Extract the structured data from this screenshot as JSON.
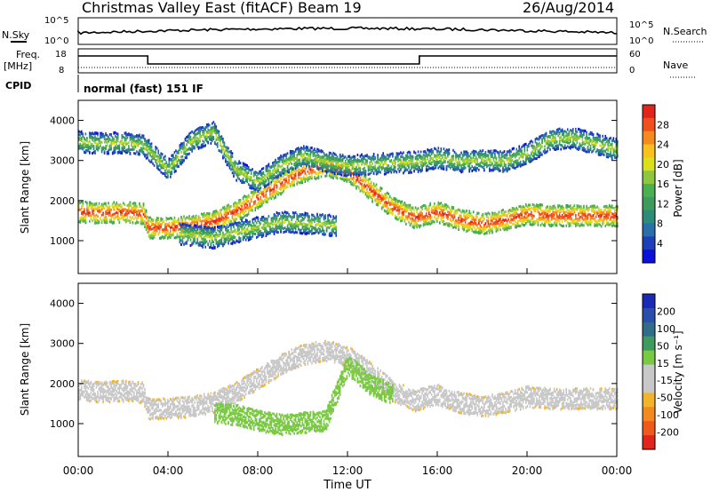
{
  "header": {
    "station": "Christmas Valley East (fitACF)",
    "beam": "Beam 19",
    "date": "26/Aug/2014"
  },
  "panels": {
    "nsky_label": "N.Sky",
    "nsearch_label": "N.Search",
    "freq_label_1": "Freq.",
    "freq_label_2": "[MHz]",
    "nave_label": "Nave",
    "cpid_label": "CPID",
    "cpid_text": "normal (fast) 151 IF",
    "noise_ticks_left": [
      "10^5",
      "10^0"
    ],
    "noise_ticks_right": [
      "10^5",
      "10^0"
    ],
    "freq_ticks_left": [
      "18",
      "8"
    ],
    "freq_ticks_right": [
      "60",
      "0"
    ]
  },
  "colorbars": {
    "power": {
      "label": "Power [dB]",
      "ticks": [
        "28",
        "24",
        "20",
        "16",
        "12",
        "8",
        "4"
      ],
      "colors": [
        "#e0261b",
        "#f05020",
        "#f58a1f",
        "#f7c21d",
        "#d9e01c",
        "#8fc63f",
        "#4caf50",
        "#3f9b5c",
        "#2e8b7a",
        "#2a6fa8",
        "#1d3fb8",
        "#0a10d8"
      ]
    },
    "velocity": {
      "label": "Velocity [m s⁻¹]",
      "ticks": [
        "200",
        "100",
        "50",
        "15",
        "-15",
        "-50",
        "-100",
        "-200"
      ],
      "colors": [
        "#1a2ab5",
        "#2a4fa8",
        "#2f6d8a",
        "#3f9b5c",
        "#79c943",
        "#c8c8c8",
        "#c8c8c8",
        "#f2b52a",
        "#f28a1f",
        "#ef5a1c",
        "#e0261b"
      ]
    }
  },
  "chart_data": [
    {
      "type": "heatmap",
      "title": "Power",
      "xlabel": "",
      "ylabel": "Slant Range [km]",
      "xlim": [
        0,
        24
      ],
      "ylim": [
        180,
        4500
      ],
      "x_ticks": [
        "00:00",
        "04:00",
        "08:00",
        "12:00",
        "16:00",
        "20:00",
        "00:00"
      ],
      "y_ticks": [
        "1000",
        "2000",
        "3000",
        "4000"
      ],
      "bands": [
        {
          "name": "lower",
          "x": [
            0,
            1,
            2,
            2.9,
            3.1,
            4,
            5,
            6,
            7,
            8,
            9,
            10,
            11,
            12,
            13,
            14,
            15,
            16,
            17,
            18,
            19,
            20,
            21,
            22,
            23,
            24
          ],
          "y": [
            1750,
            1720,
            1740,
            1700,
            1350,
            1350,
            1400,
            1500,
            1750,
            2100,
            2450,
            2750,
            2900,
            2750,
            2300,
            1850,
            1600,
            1750,
            1550,
            1450,
            1550,
            1700,
            1650,
            1650,
            1650,
            1650
          ],
          "power_db": 26
        },
        {
          "name": "upper",
          "x": [
            0,
            1,
            2,
            2.9,
            4,
            5,
            6,
            7,
            8,
            9,
            10,
            11,
            12,
            15.2,
            16,
            17,
            18,
            19,
            20,
            21,
            22,
            23,
            24
          ],
          "y": [
            3500,
            3450,
            3480,
            3400,
            2800,
            3500,
            3750,
            2800,
            2500,
            2900,
            3150,
            3000,
            2900,
            3000,
            3100,
            3000,
            3050,
            3000,
            3200,
            3550,
            3600,
            3450,
            3300
          ],
          "power_db": 14
        },
        {
          "name": "mid",
          "x": [
            4.5,
            6,
            7.5,
            9,
            10.5,
            11.5
          ],
          "y": [
            1200,
            1100,
            1300,
            1500,
            1450,
            1400
          ],
          "power_db": 14
        }
      ]
    },
    {
      "type": "heatmap",
      "title": "Velocity",
      "xlabel": "Time UT",
      "ylabel": "Slant Range [km]",
      "xlim": [
        0,
        24
      ],
      "ylim": [
        180,
        4500
      ],
      "x_ticks": [
        "00:00",
        "04:00",
        "08:00",
        "12:00",
        "16:00",
        "20:00",
        "00:00"
      ],
      "y_ticks": [
        "1000",
        "2000",
        "3000",
        "4000"
      ],
      "bands": [
        {
          "name": "lower",
          "x": [
            0,
            1,
            2,
            2.9,
            3.1,
            4,
            5,
            6,
            7,
            8,
            9,
            10,
            11,
            12,
            13,
            14,
            15,
            16,
            17,
            18,
            19,
            20,
            21,
            22,
            23,
            24
          ],
          "y": [
            1850,
            1820,
            1840,
            1800,
            1400,
            1400,
            1450,
            1550,
            1800,
            2150,
            2500,
            2750,
            2850,
            2700,
            2300,
            1850,
            1600,
            1750,
            1550,
            1450,
            1550,
            1700,
            1650,
            1650,
            1650,
            1650
          ],
          "velocity": 0
        },
        {
          "name": "green",
          "x": [
            6,
            7,
            8,
            9,
            10,
            11,
            12,
            13,
            14
          ],
          "y": [
            1300,
            1250,
            1100,
            1000,
            1050,
            1100,
            2500,
            2000,
            1750
          ],
          "velocity": 60
        }
      ]
    }
  ]
}
